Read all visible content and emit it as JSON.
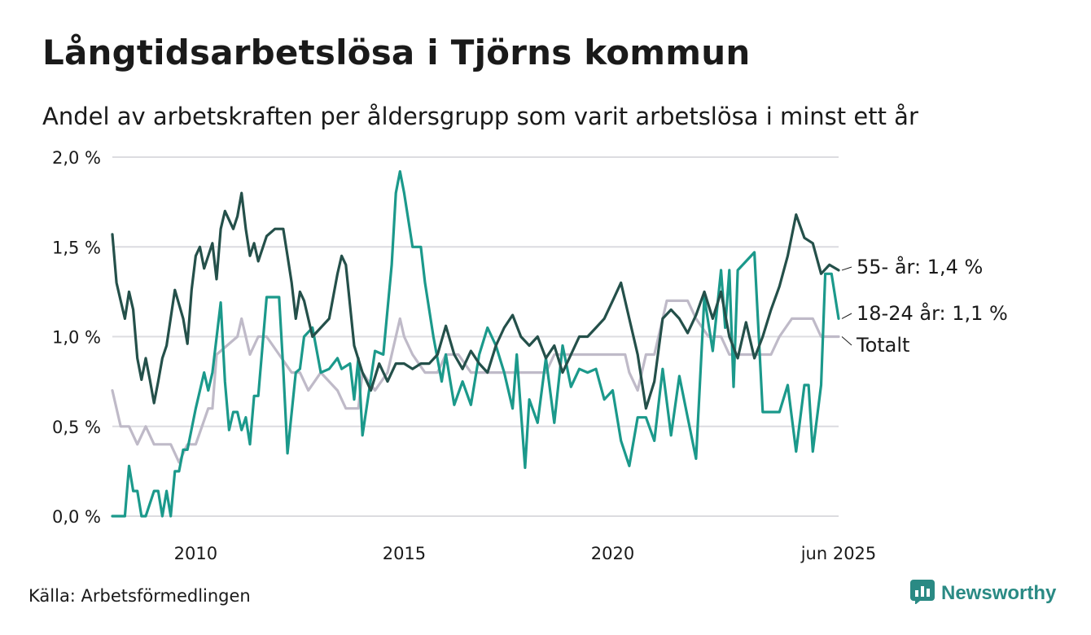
{
  "title": "Långtidsarbetslösa i Tjörns kommun",
  "subtitle": "Andel av arbetskraften per åldersgrupp som varit arbetslösa i minst ett år",
  "source": "Källa: Arbetsförmedlingen",
  "brand": {
    "name": "Newsworthy",
    "icon": "bar-chart-icon",
    "color": "#2a8a84"
  },
  "chart_data": {
    "type": "line",
    "x_unit": "year (decimal, monthly data)",
    "xlim": [
      2008.0,
      2025.42
    ],
    "ylim": [
      0,
      2
    ],
    "y_ticks": [
      0,
      0.5,
      1,
      1.5,
      2
    ],
    "y_tick_labels": [
      "0,0 %",
      "0,5 %",
      "1,0 %",
      "1,5 %",
      "2,0 %"
    ],
    "x_ticks": [
      2010,
      2015,
      2020,
      2025.42
    ],
    "x_tick_labels": [
      "2010",
      "2015",
      "2020",
      "jun 2025"
    ],
    "grid": "horizontal",
    "series": [
      {
        "name": "Totalt",
        "label": "Totalt",
        "color": "#bfbac8",
        "x": [
          2008.0,
          2008.2,
          2008.4,
          2008.6,
          2008.8,
          2009.0,
          2009.4,
          2009.6,
          2009.8,
          2010.0,
          2010.3,
          2010.4,
          2010.5,
          2011.0,
          2011.1,
          2011.2,
          2011.3,
          2011.5,
          2011.7,
          2012.0,
          2012.3,
          2012.5,
          2012.7,
          2013.0,
          2013.4,
          2013.6,
          2013.9,
          2014.0,
          2014.3,
          2014.6,
          2014.8,
          2014.9,
          2015.0,
          2015.2,
          2015.5,
          2015.8,
          2016.0,
          2016.3,
          2016.6,
          2017.0,
          2017.5,
          2018.0,
          2018.4,
          2018.6,
          2018.8,
          2019.0,
          2019.3,
          2019.5,
          2019.8,
          2020.0,
          2020.3,
          2020.4,
          2020.6,
          2020.8,
          2021.0,
          2021.1,
          2021.3,
          2021.6,
          2021.8,
          2022.0,
          2022.3,
          2022.6,
          2022.8,
          2023.2,
          2023.5,
          2023.8,
          2024.0,
          2024.3,
          2024.6,
          2024.8,
          2025.0,
          2025.2,
          2025.42
        ],
        "y": [
          0.7,
          0.5,
          0.5,
          0.4,
          0.5,
          0.4,
          0.4,
          0.3,
          0.4,
          0.4,
          0.6,
          0.6,
          0.9,
          1.0,
          1.1,
          1.0,
          0.9,
          1.0,
          1.0,
          0.9,
          0.8,
          0.8,
          0.7,
          0.8,
          0.7,
          0.6,
          0.6,
          0.8,
          0.7,
          0.8,
          1.0,
          1.1,
          1.0,
          0.9,
          0.8,
          0.8,
          0.9,
          0.9,
          0.8,
          0.8,
          0.8,
          0.8,
          0.8,
          0.9,
          0.9,
          0.9,
          0.9,
          0.9,
          0.9,
          0.9,
          0.9,
          0.8,
          0.7,
          0.9,
          0.9,
          1.0,
          1.2,
          1.2,
          1.2,
          1.1,
          1.0,
          1.0,
          0.9,
          0.9,
          0.9,
          0.9,
          1.0,
          1.1,
          1.1,
          1.1,
          1.0,
          1.0,
          1.0
        ]
      },
      {
        "name": "18-24 år",
        "label": "18-24 år: 1,1 %",
        "color": "#1b998b",
        "x": [
          2008.0,
          2008.3,
          2008.4,
          2008.5,
          2008.6,
          2008.7,
          2008.8,
          2009.0,
          2009.1,
          2009.2,
          2009.3,
          2009.4,
          2009.5,
          2009.6,
          2009.7,
          2009.8,
          2010.0,
          2010.2,
          2010.3,
          2010.4,
          2010.6,
          2010.7,
          2010.8,
          2010.9,
          2011.0,
          2011.1,
          2011.2,
          2011.3,
          2011.4,
          2011.5,
          2011.7,
          2011.8,
          2012.0,
          2012.1,
          2012.2,
          2012.4,
          2012.5,
          2012.6,
          2012.8,
          2013.0,
          2013.2,
          2013.4,
          2013.5,
          2013.7,
          2013.8,
          2013.9,
          2014.0,
          2014.3,
          2014.5,
          2014.7,
          2014.8,
          2014.9,
          2015.0,
          2015.2,
          2015.4,
          2015.5,
          2015.7,
          2015.9,
          2016.0,
          2016.2,
          2016.4,
          2016.6,
          2016.8,
          2017.0,
          2017.2,
          2017.4,
          2017.6,
          2017.7,
          2017.9,
          2018.0,
          2018.2,
          2018.4,
          2018.6,
          2018.8,
          2019.0,
          2019.2,
          2019.4,
          2019.6,
          2019.8,
          2020.0,
          2020.2,
          2020.4,
          2020.6,
          2020.8,
          2021.0,
          2021.2,
          2021.4,
          2021.6,
          2021.8,
          2022.0,
          2022.2,
          2022.4,
          2022.6,
          2022.7,
          2022.8,
          2022.9,
          2023.0,
          2023.4,
          2023.6,
          2023.7,
          2024.0,
          2024.2,
          2024.4,
          2024.6,
          2024.7,
          2024.8,
          2025.0,
          2025.1,
          2025.25,
          2025.42
        ],
        "y": [
          0.0,
          0.0,
          0.28,
          0.14,
          0.14,
          0.0,
          0.0,
          0.14,
          0.14,
          0.0,
          0.14,
          0.0,
          0.25,
          0.25,
          0.37,
          0.37,
          0.6,
          0.8,
          0.7,
          0.8,
          1.19,
          0.75,
          0.48,
          0.58,
          0.58,
          0.48,
          0.55,
          0.4,
          0.67,
          0.67,
          1.22,
          1.22,
          1.22,
          0.82,
          0.35,
          0.8,
          0.82,
          1.0,
          1.05,
          0.8,
          0.82,
          0.88,
          0.82,
          0.85,
          0.65,
          0.88,
          0.45,
          0.92,
          0.9,
          1.4,
          1.8,
          1.92,
          1.8,
          1.5,
          1.5,
          1.3,
          1.0,
          0.75,
          0.9,
          0.62,
          0.75,
          0.62,
          0.9,
          1.05,
          0.95,
          0.8,
          0.6,
          0.9,
          0.27,
          0.65,
          0.52,
          0.88,
          0.52,
          0.95,
          0.72,
          0.82,
          0.8,
          0.82,
          0.65,
          0.7,
          0.42,
          0.28,
          0.55,
          0.55,
          0.42,
          0.82,
          0.45,
          0.78,
          0.55,
          0.32,
          1.22,
          0.92,
          1.37,
          1.05,
          1.37,
          0.72,
          1.37,
          1.47,
          0.58,
          0.58,
          0.58,
          0.73,
          0.36,
          0.73,
          0.73,
          0.36,
          0.73,
          1.35,
          1.35,
          1.1
        ]
      },
      {
        "name": "55- år",
        "label": "55- år: 1,4 %",
        "color": "#24504a",
        "x": [
          2008.0,
          2008.1,
          2008.2,
          2008.3,
          2008.4,
          2008.5,
          2008.6,
          2008.7,
          2008.8,
          2008.9,
          2009.0,
          2009.1,
          2009.2,
          2009.3,
          2009.5,
          2009.7,
          2009.8,
          2009.9,
          2010.0,
          2010.1,
          2010.2,
          2010.4,
          2010.5,
          2010.6,
          2010.7,
          2010.9,
          2011.0,
          2011.1,
          2011.2,
          2011.3,
          2011.4,
          2011.5,
          2011.7,
          2011.9,
          2012.1,
          2012.2,
          2012.3,
          2012.4,
          2012.5,
          2012.6,
          2012.8,
          2013.0,
          2013.2,
          2013.4,
          2013.5,
          2013.6,
          2013.8,
          2014.0,
          2014.2,
          2014.4,
          2014.6,
          2014.8,
          2015.0,
          2015.2,
          2015.4,
          2015.6,
          2015.8,
          2016.0,
          2016.2,
          2016.4,
          2016.6,
          2016.8,
          2017.0,
          2017.2,
          2017.4,
          2017.6,
          2017.8,
          2018.0,
          2018.2,
          2018.4,
          2018.6,
          2018.8,
          2019.0,
          2019.2,
          2019.4,
          2019.6,
          2019.8,
          2020.0,
          2020.2,
          2020.4,
          2020.6,
          2020.8,
          2021.0,
          2021.2,
          2021.4,
          2021.6,
          2021.8,
          2022.0,
          2022.2,
          2022.4,
          2022.6,
          2022.8,
          2023.0,
          2023.2,
          2023.4,
          2023.6,
          2023.8,
          2024.0,
          2024.2,
          2024.4,
          2024.6,
          2024.8,
          2025.0,
          2025.2,
          2025.42
        ],
        "y": [
          1.57,
          1.3,
          1.2,
          1.1,
          1.25,
          1.15,
          0.88,
          0.76,
          0.88,
          0.76,
          0.63,
          0.75,
          0.88,
          0.95,
          1.26,
          1.1,
          0.96,
          1.26,
          1.45,
          1.5,
          1.38,
          1.52,
          1.32,
          1.6,
          1.7,
          1.6,
          1.67,
          1.8,
          1.6,
          1.45,
          1.52,
          1.42,
          1.56,
          1.6,
          1.6,
          1.45,
          1.3,
          1.1,
          1.25,
          1.2,
          1.0,
          1.05,
          1.1,
          1.35,
          1.45,
          1.4,
          0.95,
          0.8,
          0.7,
          0.85,
          0.75,
          0.85,
          0.85,
          0.82,
          0.85,
          0.85,
          0.9,
          1.06,
          0.9,
          0.82,
          0.92,
          0.85,
          0.8,
          0.95,
          1.05,
          1.12,
          1.0,
          0.95,
          1.0,
          0.88,
          0.95,
          0.8,
          0.9,
          1.0,
          1.0,
          1.05,
          1.1,
          1.2,
          1.3,
          1.1,
          0.9,
          0.6,
          0.75,
          1.1,
          1.15,
          1.1,
          1.02,
          1.12,
          1.25,
          1.1,
          1.25,
          1.0,
          0.88,
          1.08,
          0.88,
          1.0,
          1.15,
          1.28,
          1.45,
          1.68,
          1.55,
          1.52,
          1.35,
          1.4,
          1.37
        ]
      }
    ]
  }
}
